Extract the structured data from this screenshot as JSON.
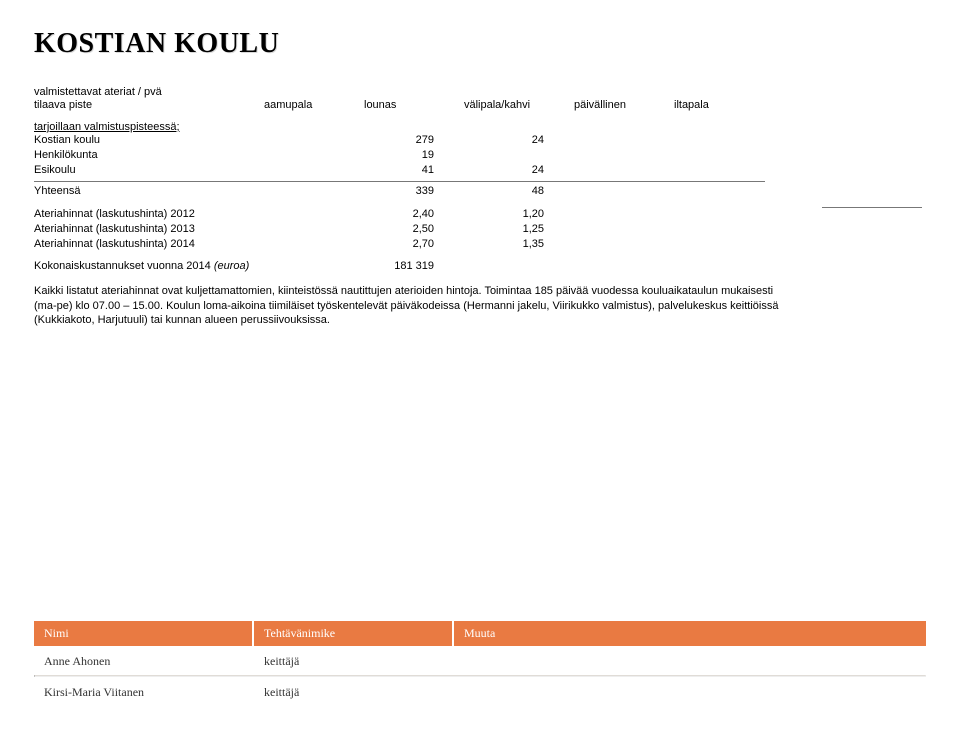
{
  "title": "KOSTIAN KOULU",
  "headers": {
    "line1": "valmistettavat ateriat / pvä",
    "line2": "tilaava piste",
    "cols": [
      "aamupala",
      "lounas",
      "välipala/kahvi",
      "päivällinen",
      "iltapala"
    ]
  },
  "group_label": "tarjoillaan valmistuspisteessä;",
  "rows": [
    {
      "label": "Kostian koulu",
      "c1": "",
      "c2": "279",
      "c3": "24",
      "c4": "",
      "c5": ""
    },
    {
      "label": "Henkilökunta",
      "c1": "",
      "c2": "19",
      "c3": "",
      "c4": "",
      "c5": ""
    },
    {
      "label": "Esikoulu",
      "c1": "",
      "c2": "41",
      "c3": "24",
      "c4": "",
      "c5": ""
    }
  ],
  "total": {
    "label": "Yhteensä",
    "c2": "339",
    "c3": "48"
  },
  "pricing": [
    {
      "label": "Ateriahinnat (laskutushinta) 2012",
      "c2": "2,40",
      "c3": "1,20"
    },
    {
      "label": "Ateriahinnat (laskutushinta) 2013",
      "c2": "2,50",
      "c3": "1,25"
    },
    {
      "label": "Ateriahinnat (laskutushinta) 2014",
      "c2": "2,70",
      "c3": "1,35"
    }
  ],
  "koko": {
    "label": "Kokonaiskustannukset vuonna 2014 (euroa)",
    "value": "181 319"
  },
  "paragraph": "Kaikki listatut ateriahinnat ovat kuljettamattomien, kiinteistössä nautittujen aterioiden hintoja. Toimintaa 185 päivää vuodessa kouluaikataulun mukaisesti (ma-pe) klo 07.00 – 15.00. Koulun loma-aikoina tiimiläiset työskentelevät päiväkodeissa (Hermanni jakelu, Viirikukko valmistus), palvelukeskus keittiöissä (Kukkiakoto, Harjutuuli) tai kunnan alueen perussiivouksissa.",
  "footer": {
    "headers": [
      "Nimi",
      "Tehtävänimike",
      "Muuta"
    ],
    "rows": [
      {
        "name": "Anne Ahonen",
        "role": "keittäjä",
        "other": ""
      },
      {
        "name": "Kirsi-Maria Viitanen",
        "role": "keittäjä",
        "other": ""
      }
    ]
  },
  "colors": {
    "accent": "#e97a42",
    "text": "#000000",
    "bg": "#ffffff"
  }
}
